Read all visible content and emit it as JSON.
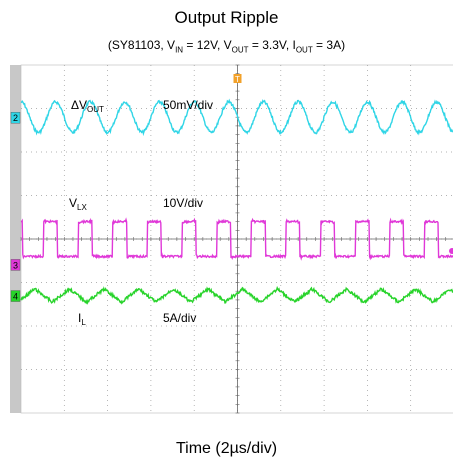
{
  "chart_data": {
    "type": "line",
    "title": "Output Ripple",
    "subtitle": "(SY81103, V<sub>IN</sub> = 12V, V<sub>OUT</sub> = 3.3V, I<sub>OUT</sub> = 3A)",
    "xlabel": "Time (2µs/div)",
    "trigger_marker": "T",
    "grid": true,
    "divisions": {
      "x": 10,
      "y": 8
    },
    "series": [
      {
        "name": "ΔV<sub>OUT</sub>",
        "scale": "50mV/div",
        "channel": "2",
        "color": "#2fd5e6",
        "waveform": "triangular ripple",
        "period_div": 0.8,
        "offset_div": 2.8,
        "amplitude_div": 0.35
      },
      {
        "name": "V<sub>LX</sub>",
        "scale": "10V/div",
        "channel": "3",
        "color": "#e038d8",
        "waveform": "switching pulse",
        "period_div": 0.8,
        "high_div": 0.4,
        "low_div": -0.4,
        "duty": 0.4
      },
      {
        "name": "I<sub>L</sub>",
        "scale": "5A/div",
        "channel": "4",
        "color": "#27d32a",
        "waveform": "triangular ripple",
        "period_div": 0.8,
        "offset_div": -1.3,
        "amplitude_div": 0.15
      }
    ]
  }
}
